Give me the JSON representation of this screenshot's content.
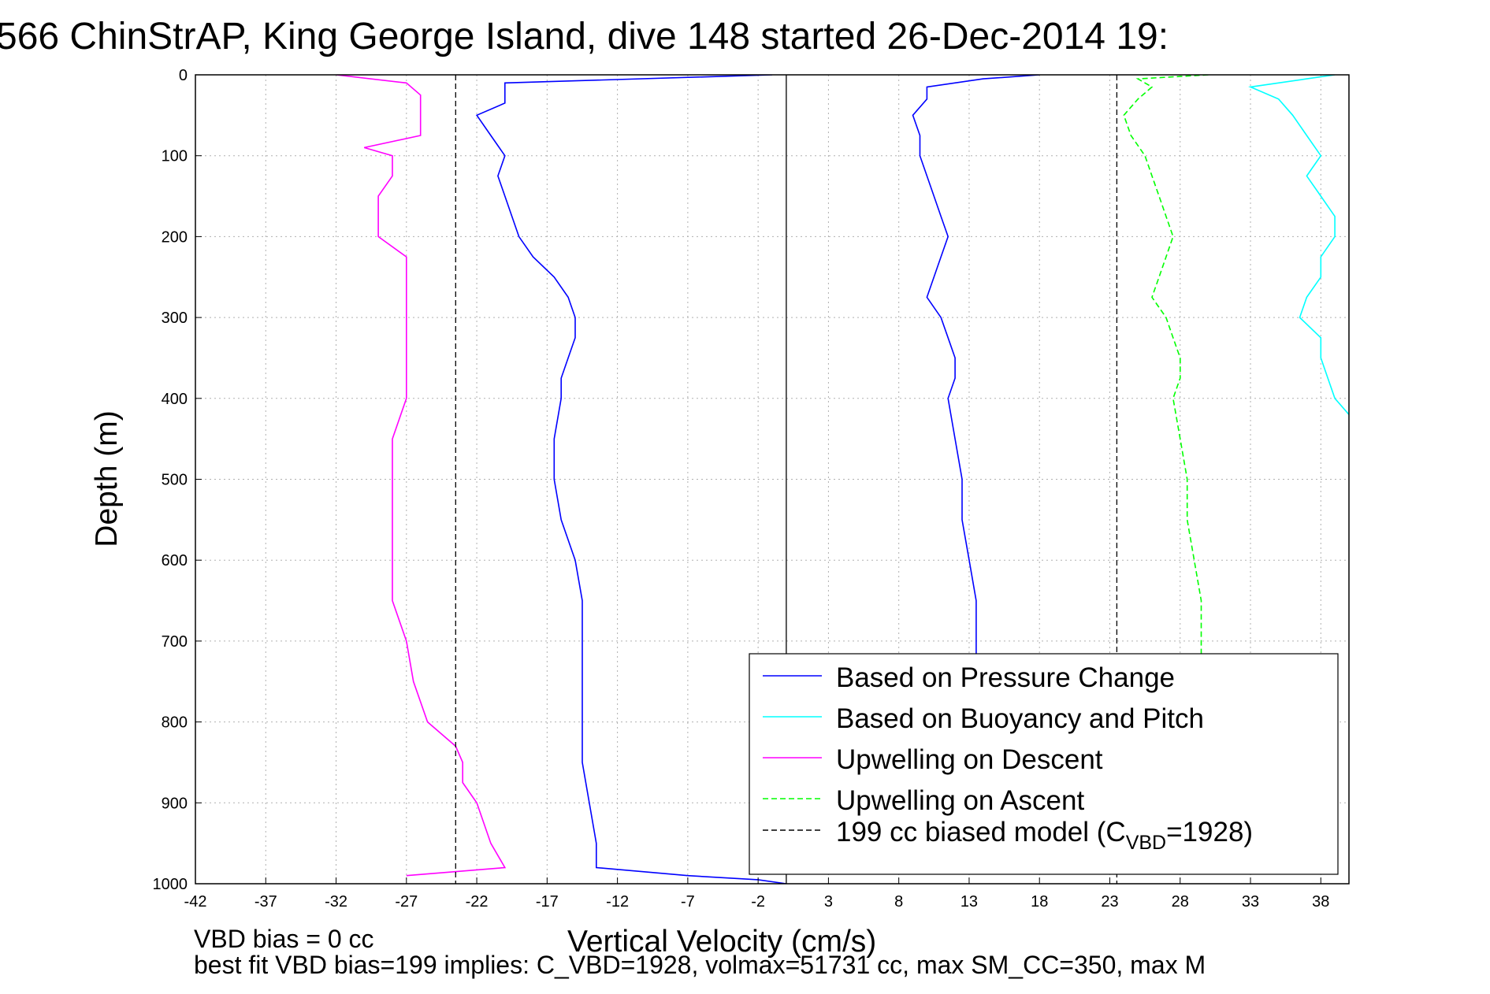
{
  "chart_data": {
    "type": "line",
    "title": "566 ChinStrAP, King George Island, dive 148 started 26-Dec-2014 19:",
    "xlabel": "Vertical Velocity (cm/s)",
    "ylabel": "Depth (m)",
    "xlim": [
      -42,
      40
    ],
    "ylim": [
      0,
      1000
    ],
    "y_reversed": true,
    "grid": true,
    "x_ticks": [
      -42,
      -37,
      -32,
      -27,
      -22,
      -17,
      -12,
      -7,
      -2,
      3,
      8,
      13,
      18,
      23,
      28,
      33,
      38
    ],
    "y_ticks": [
      0,
      100,
      200,
      300,
      400,
      500,
      600,
      700,
      800,
      900,
      1000
    ],
    "legend_position": "bottom-right",
    "legend": [
      {
        "label": "Based on Pressure Change",
        "color": "#0000ff",
        "dash": "solid"
      },
      {
        "label": "Based on Buoyancy and Pitch",
        "color": "#00ffff",
        "dash": "solid"
      },
      {
        "label": "Upwelling on Descent",
        "color": "#ff00ff",
        "dash": "solid"
      },
      {
        "label": "Upwelling on Ascent",
        "color": "#00ff00",
        "dash": "dashed"
      },
      {
        "label_pre": "199 cc biased model (C",
        "label_sub": "VBD",
        "label_post": "=1928)",
        "color": "#000000",
        "dash": "dashed"
      }
    ],
    "series": [
      {
        "name": "Based on Pressure Change (descent)",
        "color": "#0000ff",
        "dash": "solid",
        "depth": [
          0,
          10,
          20,
          35,
          50,
          75,
          100,
          125,
          150,
          175,
          200,
          225,
          250,
          275,
          300,
          325,
          350,
          375,
          400,
          450,
          500,
          550,
          600,
          650,
          700,
          750,
          800,
          850,
          900,
          950,
          980,
          990,
          995,
          1000
        ],
        "velocity": [
          -1,
          -20,
          -20,
          -20,
          -22,
          -21,
          -20,
          -20.5,
          -20,
          -19.5,
          -19,
          -18,
          -16.5,
          -15.5,
          -15,
          -15,
          -15.5,
          -16,
          -16,
          -16.5,
          -16.5,
          -16,
          -15,
          -14.5,
          -14.5,
          -14.5,
          -14.5,
          -14.5,
          -14,
          -13.5,
          -13.5,
          -7,
          -2,
          0
        ]
      },
      {
        "name": "Based on Pressure Change (ascent)",
        "color": "#0000ff",
        "dash": "solid",
        "depth": [
          0,
          5,
          15,
          30,
          50,
          75,
          100,
          125,
          150,
          175,
          200,
          225,
          250,
          275,
          300,
          325,
          350,
          375,
          400,
          450,
          500,
          550,
          600,
          650,
          700,
          720
        ],
        "velocity": [
          18,
          14,
          10,
          10,
          9,
          9.5,
          9.5,
          10,
          10.5,
          11,
          11.5,
          11,
          10.5,
          10,
          11,
          11.5,
          12,
          12,
          11.5,
          12,
          12.5,
          12.5,
          13,
          13.5,
          13.5,
          13.5
        ]
      },
      {
        "name": "Based on Buoyancy and Pitch",
        "color": "#00ffff",
        "dash": "solid",
        "depth": [
          0,
          5,
          15,
          30,
          50,
          75,
          100,
          125,
          150,
          175,
          200,
          225,
          250,
          275,
          300,
          325,
          350,
          375,
          400,
          420
        ],
        "velocity": [
          39,
          37,
          33,
          35,
          36,
          37,
          38,
          37,
          38,
          39,
          39,
          38,
          38,
          37,
          36.5,
          38,
          38,
          38.5,
          39,
          40
        ]
      },
      {
        "name": "Upwelling on Descent",
        "color": "#ff00ff",
        "dash": "solid",
        "depth": [
          0,
          10,
          25,
          50,
          75,
          90,
          100,
          125,
          150,
          175,
          200,
          225,
          250,
          275,
          300,
          325,
          350,
          375,
          400,
          450,
          500,
          550,
          600,
          650,
          700,
          750,
          800,
          830,
          850,
          875,
          900,
          925,
          950,
          980,
          990
        ],
        "velocity": [
          -32,
          -27,
          -26,
          -26,
          -26,
          -30,
          -28,
          -28,
          -29,
          -29,
          -29,
          -27,
          -27,
          -27,
          -27,
          -27,
          -27,
          -27,
          -27,
          -28,
          -28,
          -28,
          -28,
          -28,
          -27,
          -26.5,
          -25.5,
          -23.5,
          -23,
          -23,
          -22,
          -21.5,
          -21,
          -20,
          -27
        ]
      },
      {
        "name": "Upwelling on Ascent",
        "color": "#00ff00",
        "dash": "dashed",
        "depth": [
          0,
          5,
          15,
          30,
          50,
          75,
          100,
          125,
          150,
          175,
          200,
          225,
          250,
          275,
          300,
          325,
          350,
          375,
          400,
          450,
          500,
          550,
          600,
          650,
          700,
          720
        ],
        "velocity": [
          30,
          25,
          26,
          25,
          24,
          24.5,
          25.5,
          26,
          26.5,
          27,
          27.5,
          27,
          26.5,
          26,
          27,
          27.5,
          28,
          28,
          27.5,
          28,
          28.5,
          28.5,
          29,
          29.5,
          29.5,
          29.5
        ]
      },
      {
        "name": "199 cc biased model descent",
        "color": "#000000",
        "dash": "dashed",
        "depth": [
          0,
          1000
        ],
        "velocity": [
          -23.5,
          -23.5
        ]
      },
      {
        "name": "199 cc biased model ascent",
        "color": "#000000",
        "dash": "dashed",
        "depth": [
          0,
          1000
        ],
        "velocity": [
          23.5,
          23.5
        ]
      },
      {
        "name": "zero line",
        "color": "#000000",
        "dash": "solid",
        "depth": [
          0,
          1000
        ],
        "velocity": [
          0,
          0
        ]
      }
    ]
  },
  "notes": {
    "line1": "VBD bias = 0 cc",
    "line2": "best fit VBD bias=199 implies: C_VBD=1928, volmax=51731 cc, max SM_CC=350, max M"
  }
}
